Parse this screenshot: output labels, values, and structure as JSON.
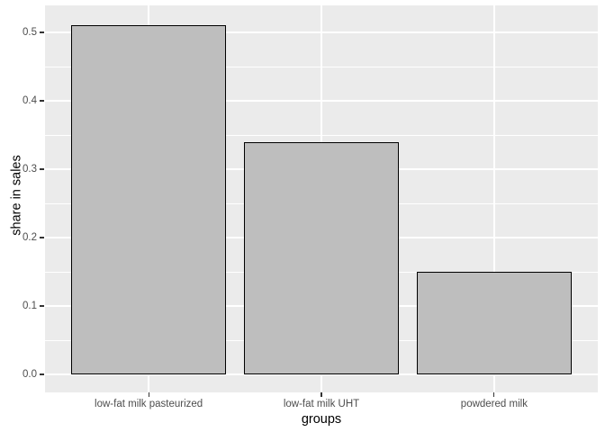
{
  "chart_data": {
    "type": "bar",
    "categories": [
      "low-fat milk pasteurized",
      "low-fat milk UHT",
      "powdered milk"
    ],
    "values": [
      0.51,
      0.34,
      0.15
    ],
    "title": "",
    "xlabel": "groups",
    "ylabel": "share in sales",
    "ylim": [
      0,
      0.54
    ],
    "yticks": [
      0,
      0.1,
      0.2,
      0.3,
      0.4,
      0.5
    ],
    "ytick_labels": [
      "0.0",
      "0.1",
      "0.2",
      "0.3",
      "0.4",
      "0.5"
    ],
    "bar_width_fraction": 0.9,
    "grid": "white major + minor horizontal lines, white major vertical lines at category centers",
    "legend": "none",
    "style": "ggplot2 grey theme"
  },
  "colors": {
    "page_bg": "#ffffff",
    "panel_bg": "#ebebeb",
    "grid": "#ffffff",
    "bar_fill": "#bebebe",
    "bar_border": "#000000",
    "tick_label": "#4d4d4d",
    "axis_title": "#000000",
    "tick_mark": "#333333"
  }
}
